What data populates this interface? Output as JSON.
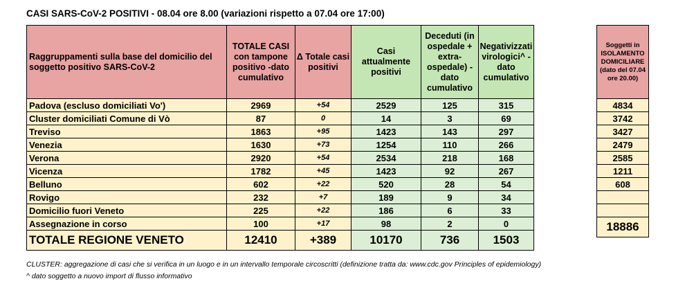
{
  "title": "CASI SARS-CoV-2 POSITIVI - 08.04 ore 8.00 (variazioni rispetto a 07.04 ore 17:00)",
  "headers": {
    "group": [
      "Raggruppamenti sulla base del domicilio del",
      "soggetto positivo SARS-CoV-2"
    ],
    "totale": [
      "TOTALE CASI",
      "con tampone",
      "positivo -dato",
      "cumulativo"
    ],
    "delta": [
      "Δ Totale casi",
      "positivi"
    ],
    "attuali": [
      "Casi",
      "attualmente",
      "positivi"
    ],
    "deceduti": [
      "Deceduti (in",
      "ospedale +",
      "extra-",
      "ospedale) -",
      "dato",
      "cumulativo"
    ],
    "negativizzati": [
      "Negativizzati",
      "virologici^ -",
      "dato",
      "cumulativo"
    ],
    "isolamento": [
      "Soggetti in",
      "ISOLAMENTO",
      "DOMICILIARE",
      "(dato del 07.04",
      "ore 20.00)"
    ]
  },
  "rows": [
    {
      "label": "Padova (escluso domiciliati Vo')",
      "totale": "2969",
      "delta": "+54",
      "attuali": "2529",
      "deceduti": "125",
      "negativizzati": "315"
    },
    {
      "label": "Cluster domiciliati Comune di Vò",
      "totale": "87",
      "delta": "0",
      "attuali": "14",
      "deceduti": "3",
      "negativizzati": "69"
    },
    {
      "label": "Treviso",
      "totale": "1863",
      "delta": "+95",
      "attuali": "1423",
      "deceduti": "143",
      "negativizzati": "297"
    },
    {
      "label": "Venezia",
      "totale": "1630",
      "delta": "+73",
      "attuali": "1254",
      "deceduti": "110",
      "negativizzati": "266"
    },
    {
      "label": "Verona",
      "totale": "2920",
      "delta": "+54",
      "attuali": "2534",
      "deceduti": "218",
      "negativizzati": "168"
    },
    {
      "label": "Vicenza",
      "totale": "1782",
      "delta": "+45",
      "attuali": "1423",
      "deceduti": "92",
      "negativizzati": "267"
    },
    {
      "label": "Belluno",
      "totale": "602",
      "delta": "+22",
      "attuali": "520",
      "deceduti": "28",
      "negativizzati": "54"
    },
    {
      "label": "Rovigo",
      "totale": "232",
      "delta": "+7",
      "attuali": "189",
      "deceduti": "9",
      "negativizzati": "34"
    },
    {
      "label": "Domicilio fuori Veneto",
      "totale": "225",
      "delta": "+22",
      "attuali": "186",
      "deceduti": "6",
      "negativizzati": "33"
    },
    {
      "label": "Assegnazione in corso",
      "totale": "100",
      "delta": "+17",
      "attuali": "98",
      "deceduti": "2",
      "negativizzati": "0"
    }
  ],
  "total": {
    "label": "TOTALE REGIONE VENETO",
    "totale": "12410",
    "delta": "+389",
    "attuali": "10170",
    "deceduti": "736",
    "negativizzati": "1503"
  },
  "isolamento": {
    "padova_vo": "4834",
    "treviso": "3742",
    "venezia": "3427",
    "verona": "2479",
    "vicenza": "2585",
    "belluno": "1211",
    "rovigo": "608",
    "total": "18886"
  },
  "notes": [
    "CLUSTER: aggregazione di casi che si verifica in un luogo e in un intervallo temporale circoscritti (definizione tratta da: www.cdc.gov   Principles of epidemiology)",
    "^ dato soggetto a nuovo import di flusso informativo"
  ]
}
